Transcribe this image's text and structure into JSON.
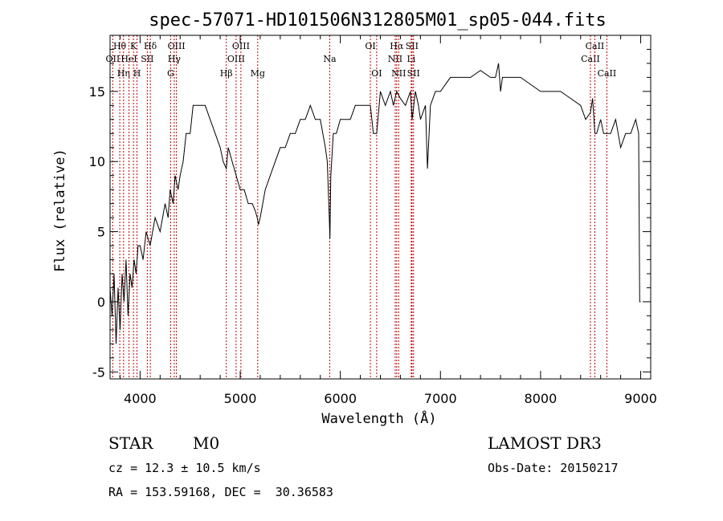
{
  "chart_data": {
    "type": "line",
    "title": "spec-57071-HD101506N312805M01_sp05-044.fits",
    "xlabel": "Wavelength (Å)",
    "ylabel": "Flux (relative)",
    "xlim": [
      3700,
      9100
    ],
    "ylim": [
      -5.5,
      19
    ],
    "xticks": [
      4000,
      5000,
      6000,
      7000,
      8000,
      9000
    ],
    "yticks": [
      -5,
      0,
      5,
      10,
      15
    ],
    "grid": false,
    "series": [
      {
        "color": "#000000",
        "x": [
          3700,
          3720,
          3740,
          3760,
          3780,
          3800,
          3820,
          3840,
          3860,
          3880,
          3900,
          3920,
          3940,
          3960,
          3980,
          4000,
          4030,
          4060,
          4100,
          4150,
          4200,
          4250,
          4280,
          4300,
          4330,
          4350,
          4380,
          4400,
          4430,
          4460,
          4500,
          4530,
          4560,
          4600,
          4650,
          4700,
          4750,
          4800,
          4830,
          4861,
          4880,
          4920,
          4960,
          5000,
          5040,
          5080,
          5120,
          5150,
          5170,
          5183,
          5200,
          5250,
          5300,
          5350,
          5400,
          5450,
          5500,
          5550,
          5600,
          5650,
          5700,
          5750,
          5800,
          5850,
          5870,
          5890,
          5896,
          5905,
          5930,
          5960,
          6000,
          6050,
          6100,
          6150,
          6200,
          6250,
          6300,
          6330,
          6363,
          6400,
          6450,
          6500,
          6530,
          6563,
          6600,
          6650,
          6700,
          6717,
          6750,
          6780,
          6800,
          6850,
          6870,
          6900,
          6950,
          7000,
          7050,
          7100,
          7150,
          7200,
          7300,
          7400,
          7500,
          7550,
          7580,
          7600,
          7620,
          7650,
          7700,
          7800,
          7900,
          8000,
          8100,
          8200,
          8300,
          8400,
          8450,
          8498,
          8520,
          8542,
          8560,
          8600,
          8630,
          8662,
          8700,
          8750,
          8800,
          8850,
          8900,
          8950,
          8980,
          8990,
          9000
        ],
        "y": [
          1,
          -1,
          2,
          -3,
          1,
          -2,
          2,
          0,
          3,
          -1,
          2,
          1,
          3,
          2,
          4,
          4,
          3,
          5,
          4,
          6,
          5,
          7,
          6,
          8,
          7,
          9,
          8,
          9,
          10,
          12,
          12,
          14,
          14,
          14,
          14,
          13,
          12,
          11,
          10,
          9.5,
          11,
          10,
          9,
          8,
          8,
          7,
          7,
          6.5,
          6,
          5.5,
          6,
          8,
          9,
          10,
          11,
          11,
          12,
          12,
          13,
          13,
          14,
          13,
          13,
          11,
          10,
          6,
          4.5,
          9,
          12,
          12,
          13,
          13,
          13,
          14,
          14,
          14,
          14,
          12,
          12,
          15,
          14,
          15,
          14,
          15,
          14.5,
          14,
          15,
          13,
          15,
          14,
          13,
          14,
          9.5,
          14,
          15,
          15,
          15.5,
          16,
          16,
          16,
          16,
          16.5,
          16,
          16,
          17,
          15,
          16,
          16,
          16,
          16,
          15.5,
          15,
          15,
          15,
          14.5,
          14,
          13,
          13.5,
          14.5,
          12,
          12,
          13,
          12,
          12,
          12,
          13,
          11,
          12,
          12,
          13,
          12,
          0,
          0
        ]
      }
    ],
    "lines": [
      {
        "name": "OII",
        "x": 3727,
        "row": 1
      },
      {
        "name": "Hθ",
        "x": 3797,
        "row": 0
      },
      {
        "name": "Hη",
        "x": 3835,
        "row": 2
      },
      {
        "name": "HeI",
        "x": 3889,
        "row": 1
      },
      {
        "name": "K",
        "x": 3934,
        "row": 0
      },
      {
        "name": "H",
        "x": 3969,
        "row": 2
      },
      {
        "name": "SII",
        "x": 4072,
        "row": 1
      },
      {
        "name": "Hδ",
        "x": 4102,
        "row": 0
      },
      {
        "name": "G",
        "x": 4305,
        "row": 2
      },
      {
        "name": "Hγ",
        "x": 4341,
        "row": 1
      },
      {
        "name": "OIII",
        "x": 4363,
        "row": 0
      },
      {
        "name": "Hβ",
        "x": 4861,
        "row": 2
      },
      {
        "name": "OIII",
        "x": 4959,
        "row": 1
      },
      {
        "name": "OIII",
        "x": 5007,
        "row": 0
      },
      {
        "name": "Mg",
        "x": 5175,
        "row": 2
      },
      {
        "name": "Na",
        "x": 5894,
        "row": 1
      },
      {
        "name": "OI",
        "x": 6300,
        "row": 0
      },
      {
        "name": "OI",
        "x": 6363,
        "row": 2
      },
      {
        "name": "NII",
        "x": 6548,
        "row": 1
      },
      {
        "name": "Hα",
        "x": 6563,
        "row": 0
      },
      {
        "name": "NII",
        "x": 6583,
        "row": 2
      },
      {
        "name": "Li",
        "x": 6708,
        "row": 1
      },
      {
        "name": "SII",
        "x": 6716,
        "row": 0
      },
      {
        "name": "SII",
        "x": 6731,
        "row": 2
      },
      {
        "name": "CaII",
        "x": 8498,
        "row": 1
      },
      {
        "name": "CaII",
        "x": 8542,
        "row": 0
      },
      {
        "name": "CaII",
        "x": 8662,
        "row": 2
      }
    ]
  },
  "info": {
    "class": "STAR",
    "subclass": "M0",
    "survey": "LAMOST DR3",
    "cz": "cz = 12.3 ± 10.5 km/s",
    "obs_date": "Obs-Date: 20150217",
    "coords": "RA = 153.59168, DEC =  30.36583"
  }
}
